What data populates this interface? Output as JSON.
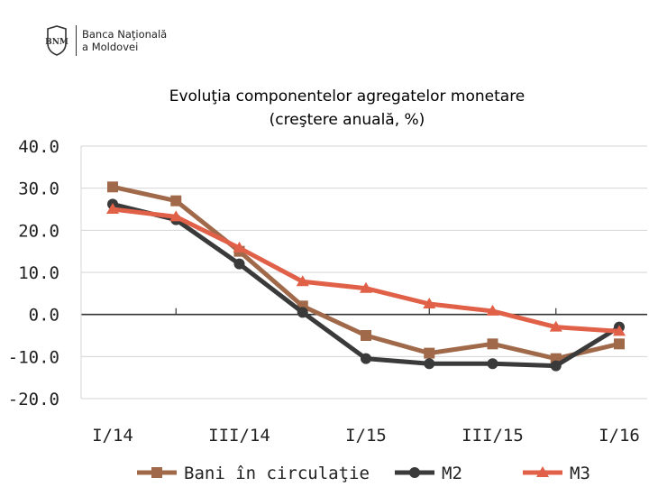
{
  "logo": {
    "line1": "Banca Naţională",
    "line2": "a Moldovei",
    "seal": "BNM"
  },
  "chart_data": {
    "type": "line",
    "title": "Evoluţia componentelor agregatelor monetare",
    "subtitle": "(creştere anuală, %)",
    "x_labels": [
      "I/14",
      "",
      "III/14",
      "",
      "I/15",
      "",
      "III/15",
      "",
      "I/16"
    ],
    "ylim": [
      -20,
      40
    ],
    "y_ticks": [
      "40.0",
      "30.0",
      "20.0",
      "10.0",
      "0.0",
      "-10.0",
      "-20.0"
    ],
    "grid": true,
    "legend_position": "bottom",
    "series": [
      {
        "name": "Bani în circulaţie",
        "color": "#a0694a",
        "marker": "square",
        "values": [
          30.3,
          27.0,
          15.0,
          2.0,
          -5.0,
          -9.2,
          -7.0,
          -10.5,
          -7.0
        ]
      },
      {
        "name": "M2",
        "color": "#3a3a3a",
        "marker": "circle",
        "values": [
          26.2,
          22.5,
          12.0,
          0.5,
          -10.5,
          -11.7,
          -11.7,
          -12.2,
          -3.0
        ]
      },
      {
        "name": "M3",
        "color": "#e06048",
        "marker": "triangle",
        "values": [
          25.0,
          23.2,
          15.8,
          7.8,
          6.2,
          2.5,
          0.8,
          -3.0,
          -4.0
        ]
      }
    ]
  }
}
